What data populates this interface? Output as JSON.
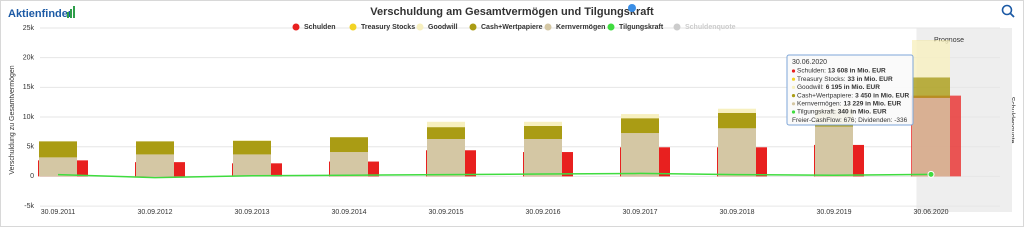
{
  "brand": "Aktienfinder",
  "chart_data": {
    "type": "bar",
    "title": "Verschuldung am Gesamtvermögen und Tilgungskraft",
    "y_label": "Verschuldung zu Gesamtvermögen",
    "y2_label": "Schuldenquote",
    "forecast_label": "Prognose",
    "categories": [
      "30.09.2011",
      "30.09.2012",
      "30.09.2013",
      "30.09.2014",
      "30.09.2015",
      "30.09.2016",
      "30.09.2017",
      "30.09.2018",
      "30.09.2019",
      "30.06.2020"
    ],
    "ylim": [
      -6000,
      25000
    ],
    "yticks": [
      {
        "value": -5000,
        "label": "-5k"
      },
      0,
      {
        "value": 5000,
        "label": "5k"
      },
      {
        "value": 10000,
        "label": "10k"
      },
      {
        "value": 15000,
        "label": "15k"
      },
      {
        "value": 20000,
        "label": "20k"
      },
      {
        "value": 25000,
        "label": "25k"
      }
    ],
    "grid": true,
    "series": [
      {
        "name": "Schulden",
        "color": "#e8201f",
        "values": [
          2700,
          2400,
          2200,
          2500,
          4400,
          4100,
          4900,
          4900,
          5300,
          13608
        ]
      },
      {
        "name": "Treasury Stocks",
        "color": "#f2d324",
        "stack": true,
        "values": [
          0,
          0,
          0,
          0,
          0,
          0,
          0,
          0,
          0,
          33
        ]
      },
      {
        "name": "Goodwill",
        "color": "#f7f0bf",
        "stack": true,
        "values": [
          0,
          0,
          100,
          0,
          900,
          700,
          700,
          700,
          800,
          6195
        ]
      },
      {
        "name": "Cash+Wertpapiere",
        "color": "#aa9c14",
        "stack": true,
        "values": [
          2700,
          2200,
          2300,
          2500,
          2000,
          2200,
          2500,
          2600,
          2800,
          3450
        ]
      },
      {
        "name": "Kernvermögen",
        "color": "#d4c7a4",
        "stack": true,
        "values": [
          3200,
          3700,
          3700,
          4100,
          6300,
          6300,
          7300,
          8100,
          8400,
          13229
        ]
      },
      {
        "name": "Tilgungskraft",
        "color": "#3fdc3f",
        "line": true,
        "values": [
          300,
          -200,
          100,
          200,
          300,
          400,
          500,
          300,
          200,
          340
        ]
      },
      {
        "name": "Schuldenquote",
        "color": "#cccccc",
        "visible": false,
        "values": [
          null,
          null,
          null,
          null,
          null,
          null,
          null,
          null,
          null,
          null
        ]
      }
    ],
    "tooltip": {
      "title": "30.06.2020",
      "lines": [
        {
          "color": "#e8201f",
          "label": "Schulden:",
          "value": "13 608 in Mio. EUR"
        },
        {
          "color": "#f2d324",
          "label": "Treasury Stocks:",
          "value": "33 in Mio. EUR"
        },
        {
          "color": "#f7f0bf",
          "label": "Goodwill:",
          "value": "6 195 in Mio. EUR"
        },
        {
          "color": "#aa9c14",
          "label": "Cash+Wertpapiere:",
          "value": "3 450 in Mio. EUR"
        },
        {
          "color": "#d4c7a4",
          "label": "Kernvermögen:",
          "value": "13 229 in Mio. EUR"
        },
        {
          "color": "#3fdc3f",
          "label": "Tilgungskraft:",
          "value": "340 in Mio. EUR"
        },
        {
          "label": "Freier-CashFlow: 676; Dividenden: -336"
        }
      ]
    }
  }
}
